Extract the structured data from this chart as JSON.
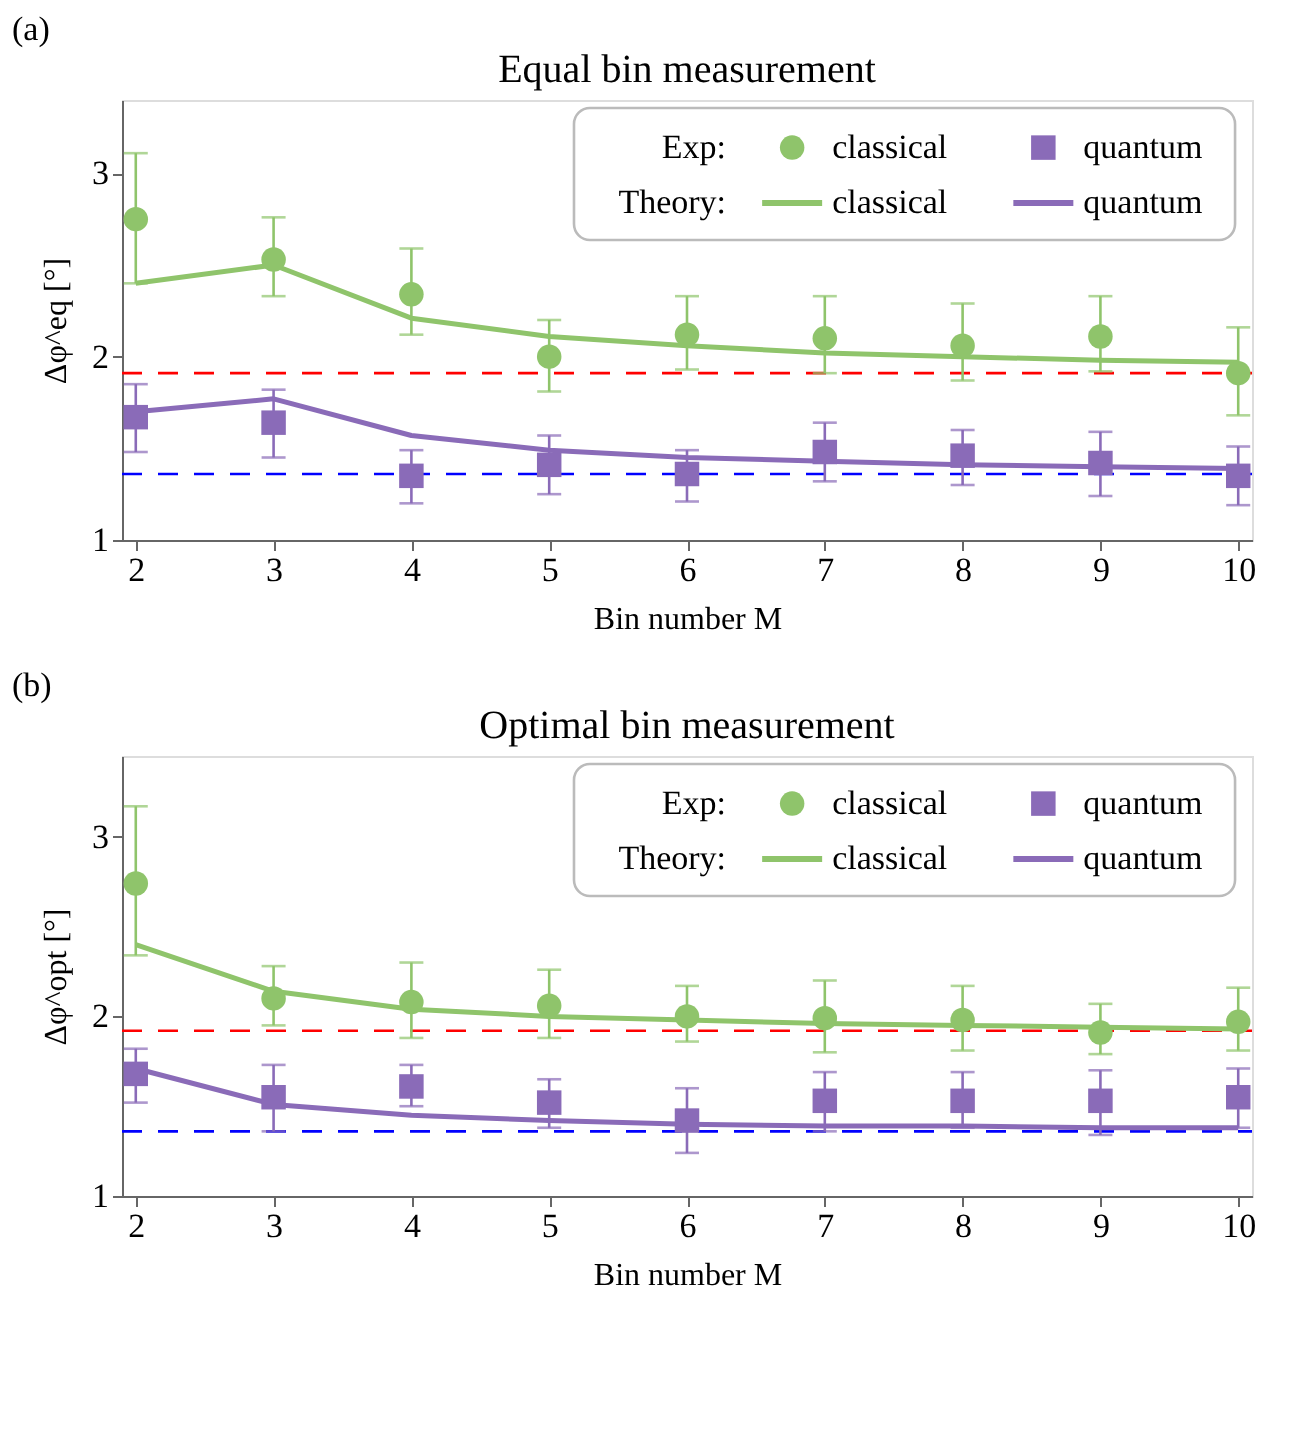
{
  "chart_data": [
    {
      "type": "line",
      "title": "Equal bin measurement",
      "xlabel": "Bin number M",
      "ylabel": "Δφ^eq [°]",
      "annotations": [
        "(a)",
        "Exp:",
        "Theory:"
      ],
      "x": [
        2,
        3,
        4,
        5,
        6,
        7,
        8,
        9,
        10
      ],
      "xlim": [
        1.9,
        10.1
      ],
      "xticks": [
        2,
        3,
        4,
        5,
        6,
        7,
        8,
        9,
        10
      ],
      "ylim": [
        1,
        3.4
      ],
      "yticks": [
        1,
        2,
        3
      ],
      "grid": false,
      "legend": "top right",
      "series": [
        {
          "name": "classical",
          "type": "scatter",
          "marker": "circle",
          "color": "#8fc46b",
          "values": [
            2.75,
            2.53,
            2.34,
            2.0,
            2.12,
            2.1,
            2.06,
            2.11,
            1.91
          ],
          "errors": [
            [
              2.4,
              3.11
            ],
            [
              2.33,
              2.76
            ],
            [
              2.12,
              2.59
            ],
            [
              1.81,
              2.2
            ],
            [
              1.93,
              2.33
            ],
            [
              1.91,
              2.33
            ],
            [
              1.87,
              2.29
            ],
            [
              1.92,
              2.33
            ],
            [
              1.68,
              2.16
            ]
          ]
        },
        {
          "name": "quantum",
          "type": "scatter",
          "marker": "square",
          "color": "#8a6bb8",
          "values": [
            1.67,
            1.64,
            1.35,
            1.41,
            1.36,
            1.48,
            1.46,
            1.42,
            1.35
          ],
          "errors": [
            [
              1.48,
              1.85
            ],
            [
              1.45,
              1.82
            ],
            [
              1.2,
              1.49
            ],
            [
              1.25,
              1.57
            ],
            [
              1.21,
              1.49
            ],
            [
              1.32,
              1.64
            ],
            [
              1.3,
              1.6
            ],
            [
              1.24,
              1.59
            ],
            [
              1.19,
              1.51
            ]
          ]
        },
        {
          "name": "classical",
          "type": "line",
          "color": "#8fc46b",
          "values": [
            2.4,
            2.5,
            2.21,
            2.11,
            2.06,
            2.02,
            2.0,
            1.98,
            1.97
          ]
        },
        {
          "name": "quantum",
          "type": "line",
          "color": "#8a6bb8",
          "values": [
            1.7,
            1.77,
            1.57,
            1.49,
            1.45,
            1.43,
            1.41,
            1.4,
            1.39
          ]
        }
      ],
      "ref_lines": [
        {
          "axis": "y",
          "value": 1.91,
          "color": "#ff0000",
          "line_style": "dashed"
        },
        {
          "axis": "y",
          "value": 1.36,
          "color": "#0000ff",
          "line_style": "dashed"
        }
      ]
    },
    {
      "type": "line",
      "title": "Optimal bin measurement",
      "xlabel": "Bin number M",
      "ylabel": "Δφ^opt [°]",
      "annotations": [
        "(b)",
        "Exp:",
        "Theory:"
      ],
      "x": [
        2,
        3,
        4,
        5,
        6,
        7,
        8,
        9,
        10
      ],
      "xlim": [
        1.9,
        10.1
      ],
      "xticks": [
        2,
        3,
        4,
        5,
        6,
        7,
        8,
        9,
        10
      ],
      "ylim": [
        1,
        3.45
      ],
      "yticks": [
        1,
        2,
        3
      ],
      "grid": false,
      "legend": "top right",
      "series": [
        {
          "name": "classical",
          "type": "scatter",
          "marker": "circle",
          "color": "#8fc46b",
          "values": [
            2.74,
            2.1,
            2.08,
            2.06,
            2.0,
            1.99,
            1.98,
            1.91,
            1.97
          ],
          "errors": [
            [
              2.34,
              3.17
            ],
            [
              1.95,
              2.28
            ],
            [
              1.88,
              2.3
            ],
            [
              1.88,
              2.26
            ],
            [
              1.86,
              2.17
            ],
            [
              1.8,
              2.2
            ],
            [
              1.81,
              2.17
            ],
            [
              1.79,
              2.07
            ],
            [
              1.81,
              2.16
            ]
          ]
        },
        {
          "name": "quantum",
          "type": "scatter",
          "marker": "square",
          "color": "#8a6bb8",
          "values": [
            1.68,
            1.55,
            1.61,
            1.52,
            1.42,
            1.53,
            1.53,
            1.53,
            1.55
          ],
          "errors": [
            [
              1.52,
              1.82
            ],
            [
              1.36,
              1.73
            ],
            [
              1.5,
              1.73
            ],
            [
              1.38,
              1.65
            ],
            [
              1.24,
              1.6
            ],
            [
              1.36,
              1.69
            ],
            [
              1.38,
              1.69
            ],
            [
              1.34,
              1.7
            ],
            [
              1.38,
              1.71
            ]
          ]
        },
        {
          "name": "classical",
          "type": "line",
          "color": "#8fc46b",
          "values": [
            2.4,
            2.14,
            2.04,
            2.0,
            1.98,
            1.96,
            1.95,
            1.94,
            1.93
          ]
        },
        {
          "name": "quantum",
          "type": "line",
          "color": "#8a6bb8",
          "values": [
            1.71,
            1.51,
            1.45,
            1.42,
            1.4,
            1.39,
            1.39,
            1.38,
            1.38
          ]
        }
      ],
      "ref_lines": [
        {
          "axis": "y",
          "value": 1.92,
          "color": "#ff0000",
          "line_style": "dashed"
        },
        {
          "axis": "y",
          "value": 1.36,
          "color": "#0000ff",
          "line_style": "dashed"
        }
      ]
    }
  ]
}
